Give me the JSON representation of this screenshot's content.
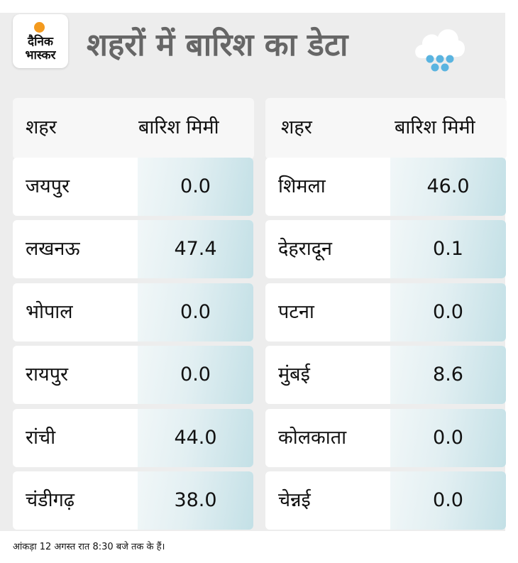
{
  "brand": {
    "line1": "दैनिक",
    "line2": "भास्कर"
  },
  "title": "शहरों में बारिश का डेटा",
  "weather_icon": "rain-cloud-icon",
  "headers": {
    "left": {
      "city": "शहर",
      "rain": "बारिश मिमी"
    },
    "right": {
      "city": "शहर",
      "rain": "बारिश मिमी"
    }
  },
  "left_rows": [
    {
      "city": "जयपुर",
      "rain": "0.0"
    },
    {
      "city": "लखनऊ",
      "rain": "47.4"
    },
    {
      "city": "भोपाल",
      "rain": "0.0"
    },
    {
      "city": "रायपुर",
      "rain": "0.0"
    },
    {
      "city": "रांची",
      "rain": "44.0"
    },
    {
      "city": "चंडीगढ़",
      "rain": "38.0"
    }
  ],
  "right_rows": [
    {
      "city": "शिमला",
      "rain": "46.0"
    },
    {
      "city": "देहरादून",
      "rain": "0.1"
    },
    {
      "city": "पटना",
      "rain": "0.0"
    },
    {
      "city": "मुंबई",
      "rain": "8.6"
    },
    {
      "city": "कोलकाता",
      "rain": "0.0"
    },
    {
      "city": "चेन्नई",
      "rain": "0.0"
    }
  ],
  "footnote": "आंकड़ा 12 अगस्त रात 8:30 बजे तक के हैं।",
  "colors": {
    "accent": "#f39a1e",
    "title": "#666666",
    "panel": "#ededed",
    "rain_drop": "#5ab4e0"
  }
}
